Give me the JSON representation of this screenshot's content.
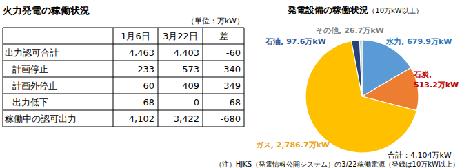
{
  "table": {
    "title": "火力発電の稼働状況",
    "unit": "（単位：万kW）",
    "header": [
      null,
      "1月6日",
      "3月22日",
      "差"
    ],
    "rows": [
      [
        "出力認可合計",
        "4,463",
        "4,403",
        "-60"
      ],
      [
        "計画停止",
        "233",
        "573",
        "340"
      ],
      [
        "計画外停止",
        "60",
        "409",
        "349"
      ],
      [
        "出力低下",
        "68",
        "0",
        "-68"
      ],
      [
        "稼働中の認可出力",
        "4,102",
        "3,422",
        "-680"
      ]
    ]
  },
  "chart_data": {
    "type": "pie",
    "title": "発電設備の稼働状況",
    "subtitle": "（10万kW以上）",
    "categories": [
      "水力",
      "石炭",
      "ガス",
      "石油",
      "その他"
    ],
    "values": [
      679.9,
      513.2,
      2786.7,
      97.6,
      26.7
    ],
    "value_labels": [
      "679.9万kW",
      "513.2万kW",
      "2,786.7万kW",
      "97.6万kW",
      "26.7万kW"
    ],
    "colors": [
      "#5b9bd5",
      "#ed7d31",
      "#ffc000",
      "#264478",
      "#a5a5a5"
    ],
    "data_labels": true,
    "annotations": [
      "合計：4,104万kW"
    ]
  },
  "note": "（注）HJKS（発電情報公開システム）の3/22稼働電源（登録は10万kW以上）"
}
